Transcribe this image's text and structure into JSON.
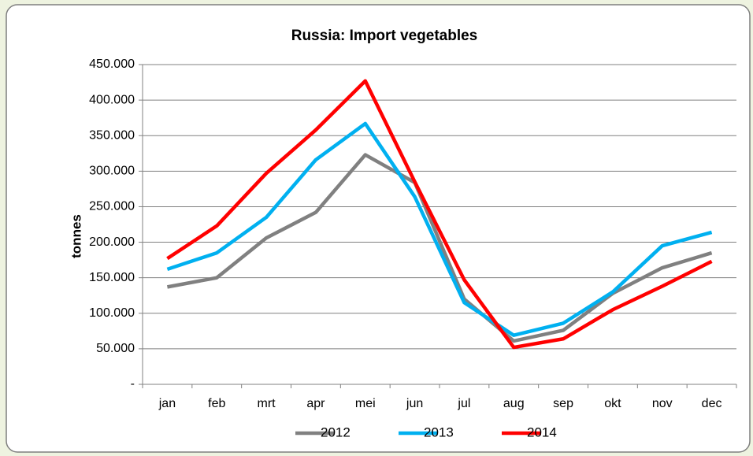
{
  "chart_data": {
    "type": "line",
    "title": "Russia: Import vegetables",
    "ylabel": "tonnes",
    "categories": [
      "jan",
      "feb",
      "mrt",
      "apr",
      "mei",
      "jun",
      "jul",
      "aug",
      "sep",
      "okt",
      "nov",
      "dec"
    ],
    "series": [
      {
        "name": "2012",
        "color": "#808080",
        "values": [
          137000,
          150000,
          206000,
          242000,
          323000,
          284000,
          120000,
          61000,
          76000,
          128000,
          164000,
          185000
        ]
      },
      {
        "name": "2013",
        "color": "#00b0f0",
        "values": [
          162000,
          185000,
          235000,
          316000,
          367000,
          264000,
          115000,
          69000,
          86000,
          130000,
          195000,
          214000
        ]
      },
      {
        "name": "2014",
        "color": "#ff0000",
        "values": [
          177000,
          223000,
          297000,
          358000,
          427000,
          285000,
          147000,
          52000,
          64000,
          105000,
          138000,
          173000
        ]
      }
    ],
    "ylim": [
      0,
      450000
    ],
    "yticks": [
      {
        "value": 0,
        "label": "-"
      },
      {
        "value": 50000,
        "label": "50.000"
      },
      {
        "value": 100000,
        "label": "100.000"
      },
      {
        "value": 150000,
        "label": "150.000"
      },
      {
        "value": 200000,
        "label": "200.000"
      },
      {
        "value": 250000,
        "label": "250.000"
      },
      {
        "value": 300000,
        "label": "300.000"
      },
      {
        "value": 350000,
        "label": "350.000"
      },
      {
        "value": 400000,
        "label": "400.000"
      },
      {
        "value": 450000,
        "label": "450.000"
      }
    ],
    "grid": true,
    "legend": "bottom"
  }
}
